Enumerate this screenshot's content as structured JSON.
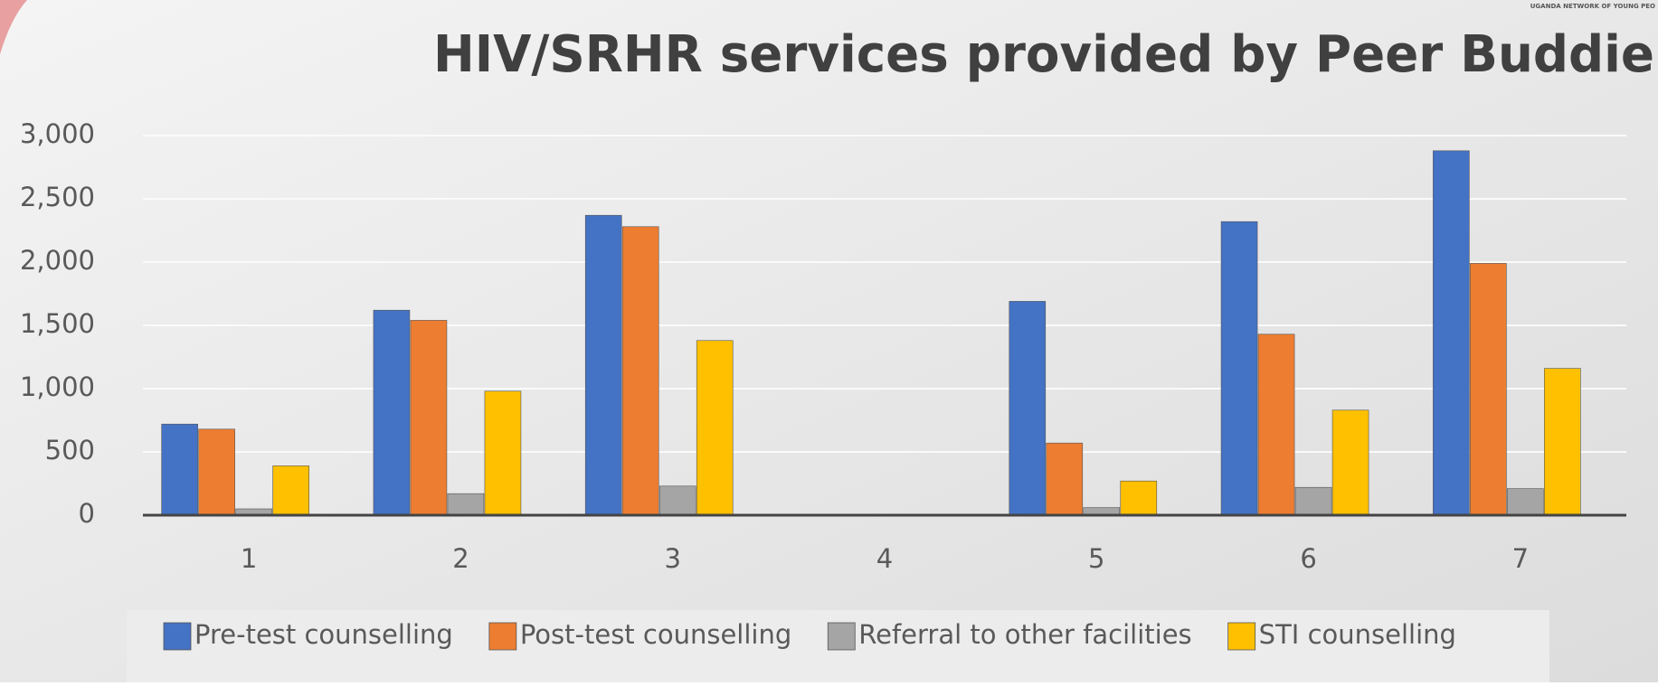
{
  "header_text": "UGANDA NETWORK OF YOUNG PEO",
  "chart_data": {
    "type": "bar",
    "title": "HIV/SRHR services provided by Peer Buddie",
    "categories": [
      "1",
      "2",
      "3",
      "4",
      "5",
      "6",
      "7"
    ],
    "series": [
      {
        "name": "Pre-test counselling",
        "color": "#4472c4",
        "values": [
          720,
          1620,
          2370,
          0,
          1690,
          2320,
          2880
        ]
      },
      {
        "name": "Post-test counselling",
        "color": "#ed7d31",
        "values": [
          680,
          1540,
          2280,
          0,
          570,
          1430,
          1990
        ]
      },
      {
        "name": "Referral to other facilities",
        "color": "#a5a5a5",
        "values": [
          50,
          170,
          230,
          0,
          60,
          220,
          210
        ]
      },
      {
        "name": "STI counselling",
        "color": "#ffc000",
        "values": [
          390,
          980,
          1380,
          0,
          270,
          830,
          1160
        ]
      }
    ],
    "ylim": [
      0,
      3000
    ],
    "yticks": [
      0,
      500,
      {
        "value": 1000,
        "label": "1,000"
      },
      {
        "value": 1500,
        "label": "1,500"
      },
      {
        "value": 2000,
        "label": "2,000"
      },
      {
        "value": 2500,
        "label": "2,500"
      },
      {
        "value": 3000,
        "label": "3,000"
      }
    ],
    "grid": true,
    "legend": "bottom"
  }
}
